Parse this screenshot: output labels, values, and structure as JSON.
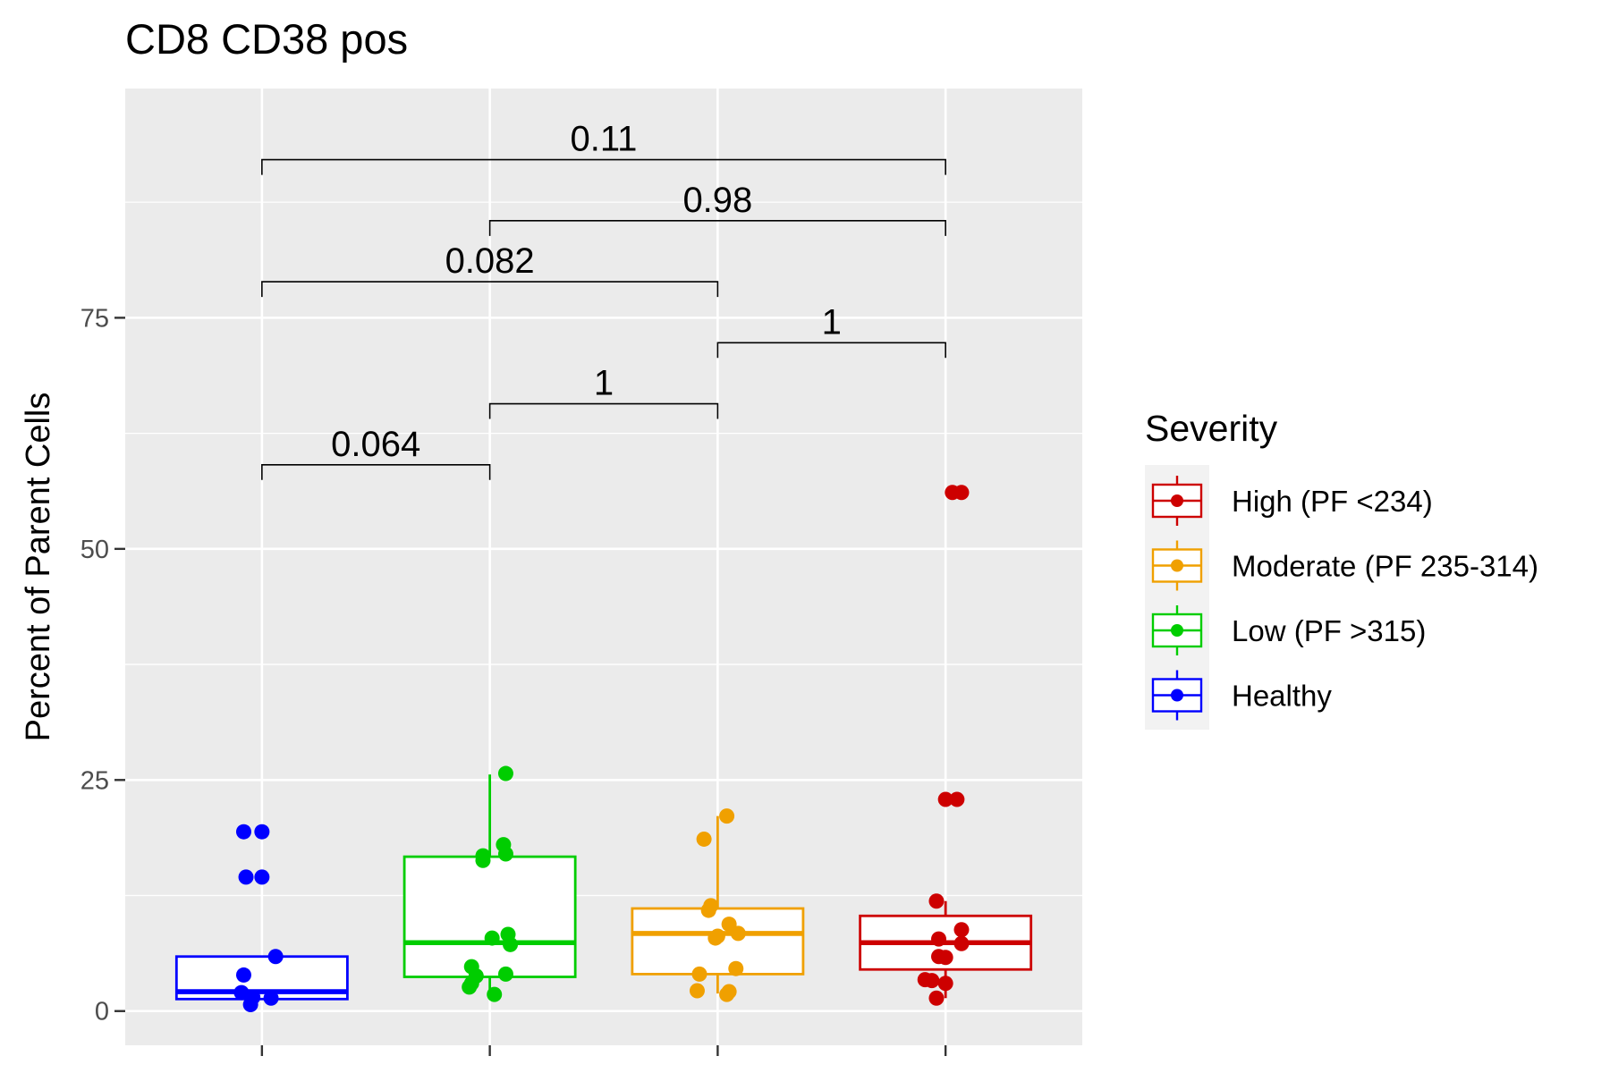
{
  "chart_data": {
    "type": "box",
    "title": "CD8 CD38 pos",
    "xlabel": "",
    "ylabel": "Percent of Parent Cells",
    "ylim": [
      -3.7,
      99.8
    ],
    "y_ticks": [
      0,
      25,
      50,
      75
    ],
    "y_tick_labels": [
      "0",
      "25",
      "50",
      "75"
    ],
    "grid": true,
    "legend_position": "right",
    "legend": {
      "title": "Severity",
      "entries": [
        "High (PF <234)",
        "Moderate (PF 235-314)",
        "Low (PF >315)",
        "Healthy"
      ]
    },
    "groups": [
      {
        "name": "Healthy",
        "color": "#0000ff",
        "box": {
          "q1": 1.3,
          "median": 2.1,
          "q3": 5.9,
          "whisker_low": 1.3,
          "whisker_high": 5.9
        },
        "points": [
          {
            "x_jitter": -0.08,
            "y": 19.4
          },
          {
            "x_jitter": 0.0,
            "y": 19.4
          },
          {
            "x_jitter": -0.07,
            "y": 14.5
          },
          {
            "x_jitter": 0.0,
            "y": 14.5
          },
          {
            "x_jitter": 0.06,
            "y": 5.9
          },
          {
            "x_jitter": -0.08,
            "y": 3.9
          },
          {
            "x_jitter": -0.09,
            "y": 2.0
          },
          {
            "x_jitter": -0.04,
            "y": 1.5
          },
          {
            "x_jitter": 0.04,
            "y": 1.4
          },
          {
            "x_jitter": -0.05,
            "y": 0.7
          }
        ]
      },
      {
        "name": "Low (PF >315)",
        "color": "#00cd00",
        "box": {
          "q1": 3.7,
          "median": 7.4,
          "q3": 16.7,
          "whisker_low": 1.8,
          "whisker_high": 25.6
        },
        "points": [
          {
            "x_jitter": 0.07,
            "y": 25.7
          },
          {
            "x_jitter": 0.06,
            "y": 18.0
          },
          {
            "x_jitter": 0.07,
            "y": 17.0
          },
          {
            "x_jitter": -0.03,
            "y": 16.8
          },
          {
            "x_jitter": -0.03,
            "y": 16.3
          },
          {
            "x_jitter": 0.08,
            "y": 8.3
          },
          {
            "x_jitter": 0.01,
            "y": 7.9
          },
          {
            "x_jitter": 0.09,
            "y": 7.2
          },
          {
            "x_jitter": -0.08,
            "y": 4.8
          },
          {
            "x_jitter": 0.07,
            "y": 4.0
          },
          {
            "x_jitter": -0.06,
            "y": 3.8
          },
          {
            "x_jitter": -0.08,
            "y": 3.0
          },
          {
            "x_jitter": -0.09,
            "y": 2.6
          },
          {
            "x_jitter": 0.02,
            "y": 1.8
          }
        ]
      },
      {
        "name": "Moderate (PF 235-314)",
        "color": "#f0a000",
        "box": {
          "q1": 4.0,
          "median": 8.4,
          "q3": 11.1,
          "whisker_low": 1.9,
          "whisker_high": 21.1
        },
        "points": [
          {
            "x_jitter": 0.04,
            "y": 21.1
          },
          {
            "x_jitter": -0.06,
            "y": 18.6
          },
          {
            "x_jitter": -0.03,
            "y": 11.4
          },
          {
            "x_jitter": -0.04,
            "y": 10.9
          },
          {
            "x_jitter": 0.05,
            "y": 9.4
          },
          {
            "x_jitter": 0.09,
            "y": 8.4
          },
          {
            "x_jitter": 0.0,
            "y": 8.1
          },
          {
            "x_jitter": -0.01,
            "y": 7.9
          },
          {
            "x_jitter": 0.08,
            "y": 4.6
          },
          {
            "x_jitter": -0.08,
            "y": 4.0
          },
          {
            "x_jitter": -0.09,
            "y": 2.2
          },
          {
            "x_jitter": 0.05,
            "y": 2.1
          },
          {
            "x_jitter": 0.04,
            "y": 1.8
          }
        ]
      },
      {
        "name": "High (PF <234)",
        "color": "#cd0000",
        "box": {
          "q1": 4.5,
          "median": 7.4,
          "q3": 10.3,
          "whisker_low": 1.4,
          "whisker_high": 11.9
        },
        "points": [
          {
            "x_jitter": 0.03,
            "y": 56.1
          },
          {
            "x_jitter": 0.07,
            "y": 56.1
          },
          {
            "x_jitter": 0.0,
            "y": 22.9
          },
          {
            "x_jitter": 0.05,
            "y": 22.9
          },
          {
            "x_jitter": -0.04,
            "y": 11.9
          },
          {
            "x_jitter": 0.07,
            "y": 8.8
          },
          {
            "x_jitter": -0.03,
            "y": 7.8
          },
          {
            "x_jitter": 0.07,
            "y": 7.3
          },
          {
            "x_jitter": -0.03,
            "y": 5.9
          },
          {
            "x_jitter": 0.0,
            "y": 5.8
          },
          {
            "x_jitter": -0.09,
            "y": 3.4
          },
          {
            "x_jitter": -0.06,
            "y": 3.3
          },
          {
            "x_jitter": 0.0,
            "y": 3.0
          },
          {
            "x_jitter": -0.04,
            "y": 1.4
          }
        ]
      }
    ],
    "comparisons": [
      {
        "from": 0,
        "to": 1,
        "y": 59.1,
        "label": "0.064"
      },
      {
        "from": 1,
        "to": 2,
        "y": 65.7,
        "label": "1"
      },
      {
        "from": 2,
        "to": 3,
        "y": 72.3,
        "label": "1"
      },
      {
        "from": 0,
        "to": 2,
        "y": 78.9,
        "label": "0.082"
      },
      {
        "from": 1,
        "to": 3,
        "y": 85.5,
        "label": "0.98"
      },
      {
        "from": 0,
        "to": 3,
        "y": 92.1,
        "label": "0.11"
      }
    ]
  }
}
